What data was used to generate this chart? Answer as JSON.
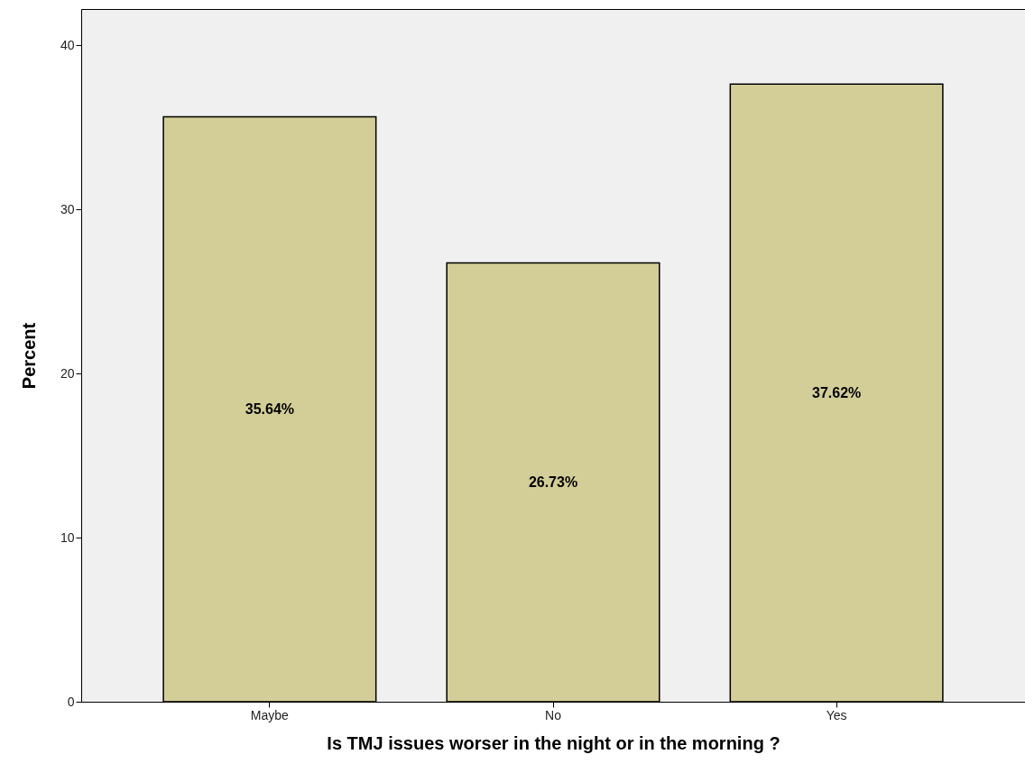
{
  "chart_data": {
    "type": "bar",
    "xlabel": "Is TMJ issues worser in the night or in the morning ?",
    "ylabel": "Percent",
    "categories": [
      "Maybe",
      "No",
      "Yes"
    ],
    "values": [
      35.64,
      26.73,
      37.62
    ],
    "value_labels": [
      "35.64%",
      "26.73%",
      "37.62%"
    ],
    "color": "#d3ce97",
    "ylim": [
      0,
      42.2
    ],
    "yticks": [
      0,
      10,
      20,
      30,
      40
    ],
    "grid": false
  }
}
